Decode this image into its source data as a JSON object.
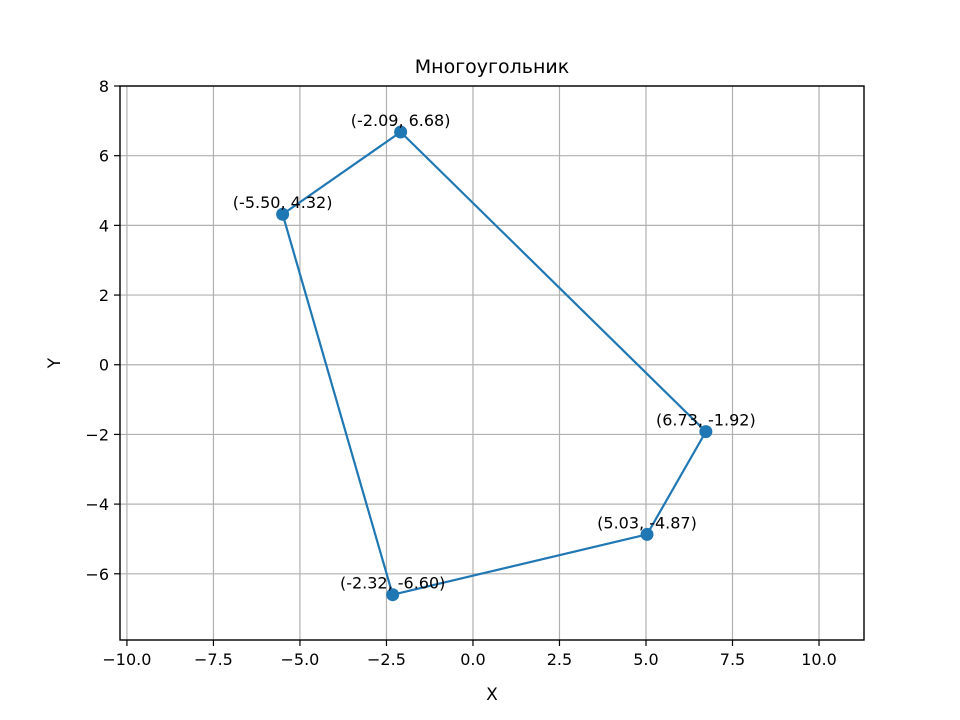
{
  "chart_data": {
    "type": "line",
    "title": "Многоугольник",
    "xlabel": "X",
    "ylabel": "Y",
    "xlim": [
      -10.2,
      11.3
    ],
    "ylim": [
      -7.9,
      8.0
    ],
    "xticks": [
      -10.0,
      -7.5,
      -5.0,
      -2.5,
      0.0,
      2.5,
      5.0,
      7.5,
      10.0
    ],
    "xtick_labels": [
      "−10.0",
      "−7.5",
      "−5.0",
      "−2.5",
      "0.0",
      "2.5",
      "5.0",
      "7.5",
      "10.0"
    ],
    "yticks": [
      -6,
      -4,
      -2,
      0,
      2,
      4,
      6,
      8
    ],
    "ytick_labels": [
      "−6",
      "−4",
      "−2",
      "0",
      "2",
      "4",
      "6",
      "8"
    ],
    "grid": true,
    "closed_polygon": true,
    "series": [
      {
        "color": "#1f77b4",
        "points": [
          {
            "x": -5.5,
            "y": 4.32,
            "label": "(-5.50, 4.32)"
          },
          {
            "x": -2.09,
            "y": 6.68,
            "label": "(-2.09, 6.68)"
          },
          {
            "x": 6.73,
            "y": -1.92,
            "label": "(6.73, -1.92)"
          },
          {
            "x": 5.03,
            "y": -4.87,
            "label": "(5.03, -4.87)"
          },
          {
            "x": -2.32,
            "y": -6.6,
            "label": "(-2.32, -6.60)"
          }
        ]
      }
    ]
  }
}
